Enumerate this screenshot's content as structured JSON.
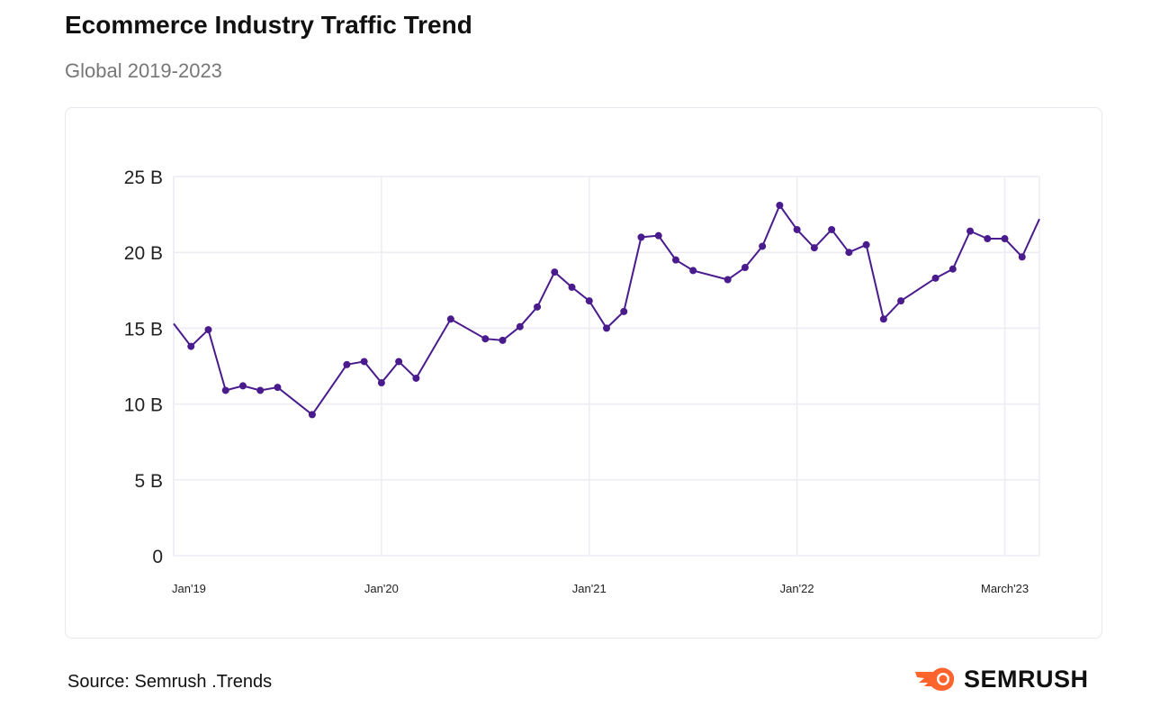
{
  "header": {
    "title": "Ecommerce Industry Traffic Trend",
    "subtitle": "Global 2019-2023"
  },
  "footer": {
    "source": "Source: Semrush .Trends",
    "logo": "SEMRUSH"
  },
  "colors": {
    "line": "#4a1b8c",
    "grid": "#ececf3",
    "logo": "#ff642d"
  },
  "chart_data": {
    "type": "line",
    "title": "Ecommerce Industry Traffic Trend",
    "subtitle": "Global 2019-2023",
    "ylim": [
      0,
      25
    ],
    "yticks": [
      0,
      5,
      10,
      15,
      20,
      25
    ],
    "ytick_labels": [
      "0",
      "5 B",
      "10 B",
      "15 B",
      "20 B",
      "25 B"
    ],
    "xticks": [
      {
        "x": "2019-01",
        "label": "Jan'19"
      },
      {
        "x": "2020-01",
        "label": "Jan'20"
      },
      {
        "x": "2021-01",
        "label": "Jan'21"
      },
      {
        "x": "2022-01",
        "label": "Jan'22"
      },
      {
        "x": "2023-01",
        "label": "March'23"
      }
    ],
    "xlim": [
      "2019-01",
      "2023-03"
    ],
    "grid": true,
    "unit": "B",
    "series": [
      {
        "points": [
          [
            "2019-01",
            15.3
          ],
          [
            "2019-02",
            13.8
          ],
          [
            "2019-03",
            14.9
          ],
          [
            "2019-04",
            10.9
          ],
          [
            "2019-05",
            11.2
          ],
          [
            "2019-06",
            10.9
          ],
          [
            "2019-07",
            11.1
          ],
          [
            "2019-09",
            9.3
          ],
          [
            "2019-11",
            12.6
          ],
          [
            "2019-12",
            12.8
          ],
          [
            "2020-01",
            11.4
          ],
          [
            "2020-02",
            12.8
          ],
          [
            "2020-03",
            11.7
          ],
          [
            "2020-05",
            15.6
          ],
          [
            "2020-07",
            14.3
          ],
          [
            "2020-08",
            14.2
          ],
          [
            "2020-09",
            15.1
          ],
          [
            "2020-10",
            16.4
          ],
          [
            "2020-11",
            18.7
          ],
          [
            "2020-12",
            17.7
          ],
          [
            "2021-01",
            16.8
          ],
          [
            "2021-02",
            15.0
          ],
          [
            "2021-03",
            16.1
          ],
          [
            "2021-04",
            21.0
          ],
          [
            "2021-05",
            21.1
          ],
          [
            "2021-06",
            19.5
          ],
          [
            "2021-07",
            18.8
          ],
          [
            "2021-09",
            18.2
          ],
          [
            "2021-10",
            19.0
          ],
          [
            "2021-11",
            20.4
          ],
          [
            "2021-12",
            23.1
          ],
          [
            "2022-01",
            21.5
          ],
          [
            "2022-02",
            20.3
          ],
          [
            "2022-03",
            21.5
          ],
          [
            "2022-04",
            20.0
          ],
          [
            "2022-05",
            20.5
          ],
          [
            "2022-06",
            15.6
          ],
          [
            "2022-07",
            16.8
          ],
          [
            "2022-09",
            18.3
          ],
          [
            "2022-10",
            18.9
          ],
          [
            "2022-11",
            21.4
          ],
          [
            "2022-12",
            20.9
          ],
          [
            "2023-01",
            20.9
          ],
          [
            "2023-02",
            19.7
          ],
          [
            "2023-03",
            22.2
          ]
        ]
      }
    ]
  }
}
